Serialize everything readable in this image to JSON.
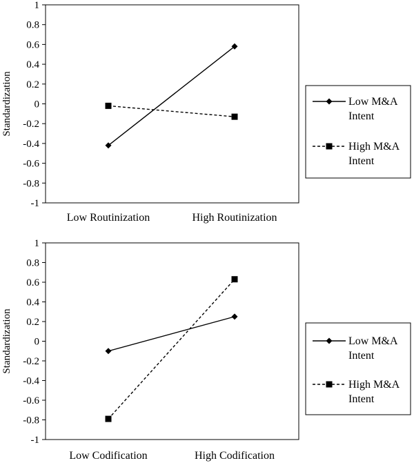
{
  "chart_data": [
    {
      "type": "line",
      "title": "",
      "xlabel": "",
      "ylabel": "Standardization",
      "ylim": [
        -1,
        1
      ],
      "yticks": [
        "1",
        "0.8",
        "0.6",
        "0.4",
        "0.2",
        "0",
        "-0.2",
        "-0.4",
        "-0.6",
        "-0.8",
        "-1"
      ],
      "categories": [
        "Low Routinization",
        "High Routinization"
      ],
      "series": [
        {
          "name_lines": [
            "Low M&A",
            "Intent"
          ],
          "style": "solid",
          "marker": "diamond",
          "values": [
            -0.42,
            0.58
          ]
        },
        {
          "name_lines": [
            "High M&A",
            "Intent"
          ],
          "style": "dashed",
          "marker": "square",
          "values": [
            -0.02,
            -0.13
          ]
        }
      ],
      "legend": "right",
      "grid": false
    },
    {
      "type": "line",
      "title": "",
      "xlabel": "",
      "ylabel": "Standardization",
      "ylim": [
        -1,
        1
      ],
      "yticks": [
        "1",
        "0.8",
        "0.6",
        "0.4",
        "0.2",
        "0",
        "-0.2",
        "-0.4",
        "-0.6",
        "-0.8",
        "-1"
      ],
      "categories": [
        "Low Codification",
        "High Codification"
      ],
      "series": [
        {
          "name_lines": [
            "Low M&A",
            "Intent"
          ],
          "style": "solid",
          "marker": "diamond",
          "values": [
            -0.1,
            0.25
          ]
        },
        {
          "name_lines": [
            "High M&A",
            "Intent"
          ],
          "style": "dashed",
          "marker": "square",
          "values": [
            -0.79,
            0.63
          ]
        }
      ],
      "legend": "right",
      "grid": false
    }
  ]
}
